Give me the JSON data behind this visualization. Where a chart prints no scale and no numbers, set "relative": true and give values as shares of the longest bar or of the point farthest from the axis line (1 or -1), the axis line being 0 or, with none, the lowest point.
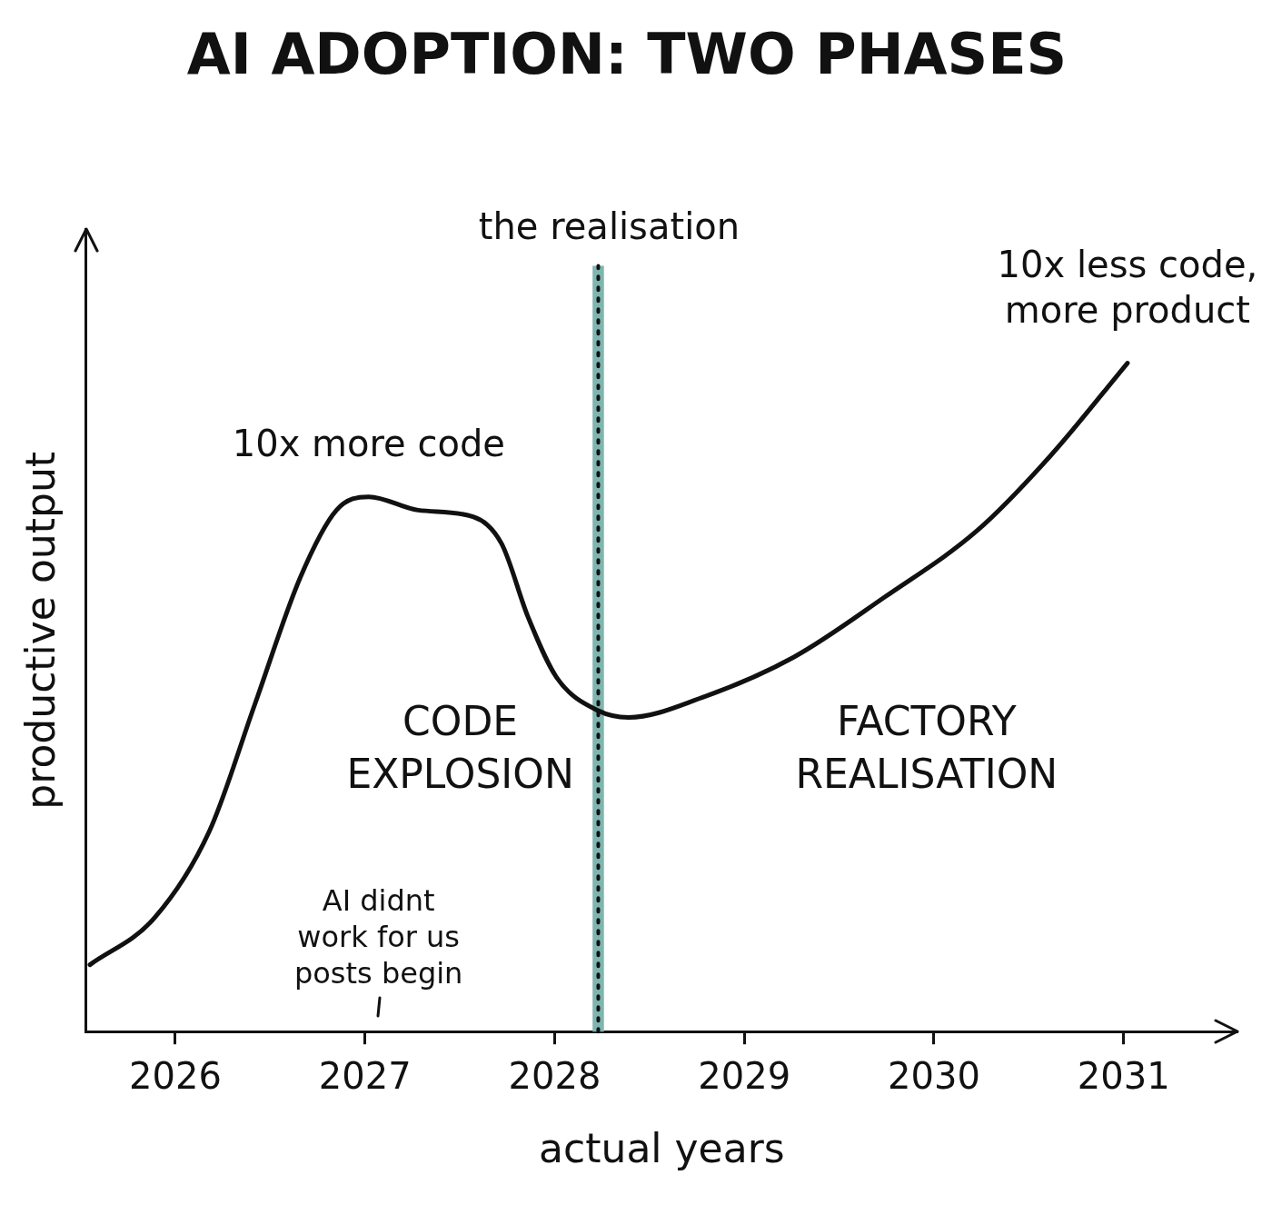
{
  "chart_data": {
    "type": "line",
    "title": "AI ADOPTION: TWO PHASES",
    "xlabel": "actual years",
    "ylabel": "productive output",
    "relative": true,
    "x": [
      2025.55,
      2025.89,
      2026.18,
      2026.42,
      2026.66,
      2026.85,
      2027.02,
      2027.28,
      2027.57,
      2027.72,
      2027.86,
      2028.01,
      2028.23,
      2028.39,
      2028.78,
      2029.26,
      2029.74,
      2030.23,
      2030.61,
      2031.02
    ],
    "series": [
      {
        "color": "#111111",
        "values": [
          0.1,
          0.17,
          0.3,
          0.49,
          0.68,
          0.78,
          0.8,
          0.78,
          0.77,
          0.73,
          0.62,
          0.53,
          0.48,
          0.47,
          0.5,
          0.56,
          0.65,
          0.75,
          0.86,
          1.0
        ]
      }
    ],
    "xlim": [
      2025.53,
      2031.6
    ],
    "xticks": [
      2026,
      2027,
      2028,
      2029,
      2030,
      2031
    ],
    "grid": false,
    "legend": false,
    "marker": "none",
    "line_style": "solid",
    "ref_lines": [
      {
        "axis": "x",
        "value": 2028.23,
        "label": "the realisation",
        "color": "#111111",
        "line_style": "dotted"
      }
    ],
    "bands": [
      {
        "axis": "x",
        "from": 2028.2,
        "to": 2028.26,
        "color": "#7fb5b0"
      }
    ],
    "annotations": [
      {
        "text": "10x more code",
        "x": 2027.02,
        "y": 0.8
      },
      {
        "text": "10x less code,\nmore product",
        "x": 2031.02,
        "y": 1.0
      },
      "CODE\nEXPLOSION",
      "FACTORY\nREALISATION",
      "AI didnt\nwork for us\nposts begin"
    ]
  }
}
